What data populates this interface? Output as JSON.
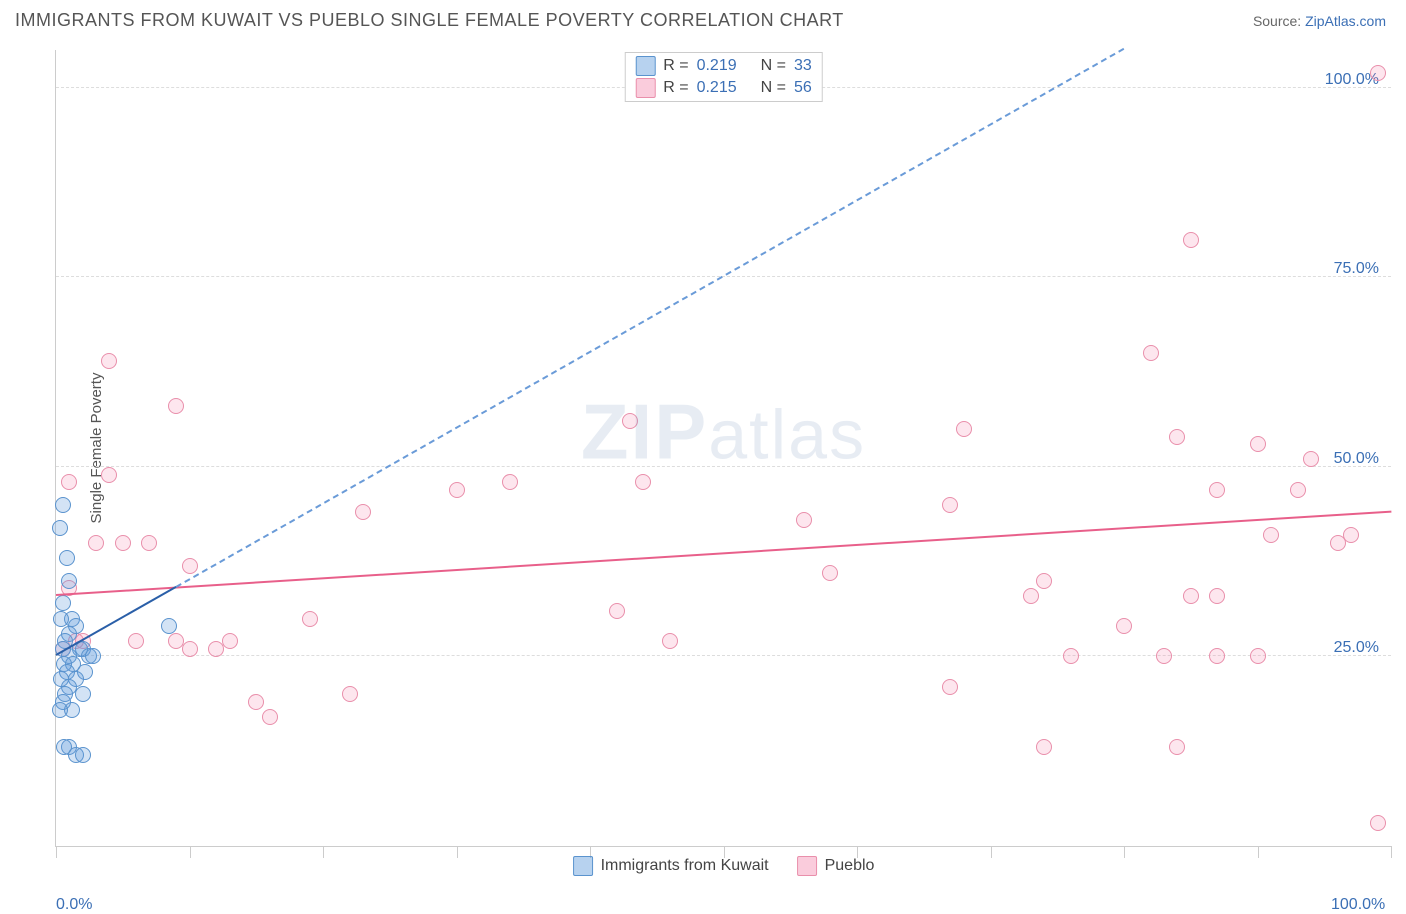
{
  "header": {
    "title": "IMMIGRANTS FROM KUWAIT VS PUEBLO SINGLE FEMALE POVERTY CORRELATION CHART",
    "source_prefix": "Source: ",
    "source_link": "ZipAtlas.com"
  },
  "chart": {
    "type": "scatter",
    "y_axis_label": "Single Female Poverty",
    "xlim": [
      0,
      100
    ],
    "ylim": [
      0,
      105
    ],
    "x_ticks": [
      0,
      10,
      20,
      30,
      40,
      50,
      60,
      70,
      80,
      90,
      100
    ],
    "x_tick_labels": {
      "0": "0.0%",
      "100": "100.0%"
    },
    "y_gridlines": [
      25,
      50,
      75,
      100
    ],
    "y_tick_labels": {
      "25": "25.0%",
      "50": "50.0%",
      "75": "75.0%",
      "100": "100.0%"
    },
    "watermark": "ZIPatlas",
    "legend_stats": {
      "series1": {
        "swatch": "blue",
        "r_label": "R =",
        "r_value": "0.219",
        "n_label": "N =",
        "n_value": "33"
      },
      "series2": {
        "swatch": "pink",
        "r_label": "R =",
        "r_value": "0.215",
        "n_label": "N =",
        "n_value": "56"
      }
    },
    "bottom_legend": {
      "item1": {
        "swatch": "blue",
        "label": "Immigrants from Kuwait"
      },
      "item2": {
        "swatch": "pink",
        "label": "Pueblo"
      }
    },
    "series_blue": {
      "color_fill": "rgba(96,156,219,0.28)",
      "color_stroke": "#5a93ce",
      "points": [
        [
          0.5,
          45
        ],
        [
          0.3,
          42
        ],
        [
          0.8,
          38
        ],
        [
          1.0,
          35
        ],
        [
          0.5,
          32
        ],
        [
          1.2,
          30
        ],
        [
          0.4,
          30
        ],
        [
          1.5,
          29
        ],
        [
          1.0,
          28
        ],
        [
          0.7,
          27
        ],
        [
          2.0,
          26
        ],
        [
          1.8,
          26
        ],
        [
          0.5,
          26
        ],
        [
          2.5,
          25
        ],
        [
          1.0,
          25
        ],
        [
          1.3,
          24
        ],
        [
          0.6,
          24
        ],
        [
          2.2,
          23
        ],
        [
          2.8,
          25
        ],
        [
          0.8,
          23
        ],
        [
          1.5,
          22
        ],
        [
          0.4,
          22
        ],
        [
          1.0,
          21
        ],
        [
          0.7,
          20
        ],
        [
          2.0,
          20
        ],
        [
          0.5,
          19
        ],
        [
          1.2,
          18
        ],
        [
          0.3,
          18
        ],
        [
          1.0,
          13
        ],
        [
          0.6,
          13
        ],
        [
          1.5,
          12
        ],
        [
          2.0,
          12
        ],
        [
          8.5,
          29
        ]
      ],
      "trendline_solid": {
        "x1": 0,
        "y1": 25,
        "x2": 9,
        "y2": 34,
        "color": "#2a5fa8"
      },
      "trendline_dashed": {
        "x1": 9,
        "y1": 34,
        "x2": 80,
        "y2": 105,
        "color": "#6a9bd8"
      }
    },
    "series_pink": {
      "color_fill": "rgba(244,143,177,0.22)",
      "color_stroke": "#e98fab",
      "points": [
        [
          4,
          64
        ],
        [
          1,
          48
        ],
        [
          4,
          49
        ],
        [
          3,
          40
        ],
        [
          5,
          40
        ],
        [
          7,
          40
        ],
        [
          9,
          58
        ],
        [
          10,
          37
        ],
        [
          1,
          34
        ],
        [
          2,
          27
        ],
        [
          0.5,
          26
        ],
        [
          1.5,
          27
        ],
        [
          6,
          27
        ],
        [
          9,
          27
        ],
        [
          10,
          26
        ],
        [
          12,
          26
        ],
        [
          13,
          27
        ],
        [
          15,
          19
        ],
        [
          16,
          17
        ],
        [
          19,
          30
        ],
        [
          22,
          20
        ],
        [
          23,
          44
        ],
        [
          30,
          47
        ],
        [
          34,
          48
        ],
        [
          42,
          31
        ],
        [
          43,
          56
        ],
        [
          44,
          48
        ],
        [
          46,
          27
        ],
        [
          56,
          43
        ],
        [
          58,
          36
        ],
        [
          67,
          21
        ],
        [
          67,
          45
        ],
        [
          68,
          55
        ],
        [
          73,
          33
        ],
        [
          74,
          13
        ],
        [
          76,
          25
        ],
        [
          74,
          35
        ],
        [
          80,
          29
        ],
        [
          82,
          65
        ],
        [
          83,
          25
        ],
        [
          84,
          13
        ],
        [
          84,
          54
        ],
        [
          85,
          33
        ],
        [
          85,
          80
        ],
        [
          87,
          25
        ],
        [
          87,
          33
        ],
        [
          87,
          47
        ],
        [
          90,
          53
        ],
        [
          90,
          25
        ],
        [
          91,
          41
        ],
        [
          93,
          47
        ],
        [
          94,
          51
        ],
        [
          96,
          40
        ],
        [
          97,
          41
        ],
        [
          99,
          3
        ],
        [
          99,
          102
        ]
      ],
      "trendline_solid": {
        "x1": 0,
        "y1": 33,
        "x2": 100,
        "y2": 44,
        "color": "#e85f8a"
      }
    }
  }
}
